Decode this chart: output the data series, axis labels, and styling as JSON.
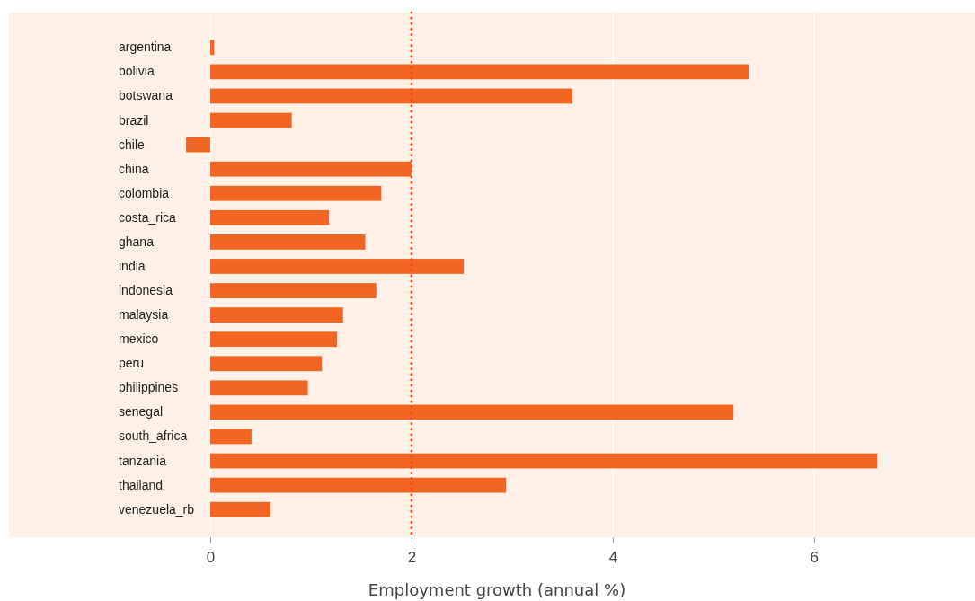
{
  "chart_data": {
    "type": "bar",
    "orientation": "horizontal",
    "xlabel": "Employment growth (annual %)",
    "categories": [
      "argentina",
      "bolivia",
      "botswana",
      "brazil",
      "chile",
      "china",
      "colombia",
      "costa_rica",
      "ghana",
      "india",
      "indonesia",
      "malaysia",
      "mexico",
      "peru",
      "philippines",
      "senegal",
      "south_africa",
      "tanzania",
      "thailand",
      "venezuela_rb"
    ],
    "values": [
      0.04,
      5.35,
      3.6,
      0.81,
      -0.24,
      2.0,
      1.7,
      1.18,
      1.54,
      2.52,
      1.65,
      1.32,
      1.26,
      1.11,
      0.97,
      5.2,
      0.41,
      6.63,
      2.94,
      0.6
    ],
    "color": "#f26522",
    "xlim": [
      -2,
      7.6
    ],
    "xticks": [
      0,
      2,
      4,
      6
    ],
    "grid": "x",
    "ref_lines": [
      {
        "axis": "x",
        "value": 2,
        "color": "#f04e23",
        "line_style": "dotted"
      }
    ]
  }
}
